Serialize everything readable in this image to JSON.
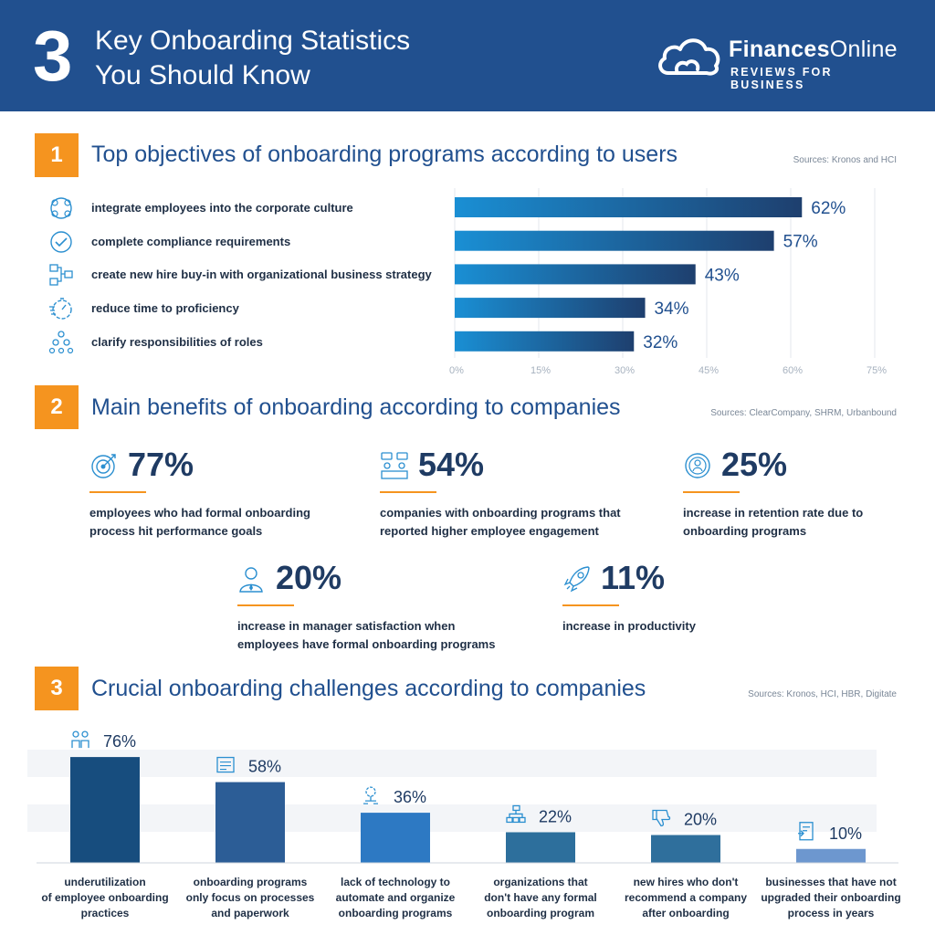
{
  "header": {
    "number": "3",
    "title_line1": "Key Onboarding Statistics",
    "title_line2": "You Should Know",
    "brand_bold": "Finances",
    "brand_rest": "Online",
    "brand_tagline": "REVIEWS FOR BUSINESS"
  },
  "section1": {
    "number": "1",
    "title": "Top objectives of onboarding programs according to users",
    "source": "Sources: Kronos and HCI"
  },
  "section2": {
    "number": "2",
    "title": "Main benefits of onboarding according to companies",
    "source": "Sources: ClearCompany, SHRM, Urbanbound",
    "stats": [
      {
        "value": "77%",
        "line1": "employees who had formal onboarding",
        "line2": "process hit performance goals",
        "icon": "target-icon"
      },
      {
        "value": "54%",
        "line1": "companies with onboarding programs that",
        "line2": "reported higher employee engagement",
        "icon": "team-chat-icon"
      },
      {
        "value": "25%",
        "line1": "increase in retention rate due to",
        "line2": "onboarding programs",
        "icon": "employee-badge-icon"
      },
      {
        "value": "20%",
        "line1": "increase in manager satisfaction when",
        "line2": "employees have formal onboarding programs",
        "icon": "manager-icon"
      },
      {
        "value": "11%",
        "line1": "increase in productivity",
        "line2": "",
        "icon": "rocket-icon"
      }
    ]
  },
  "section3": {
    "number": "3",
    "title": "Crucial onboarding challenges according to companies",
    "source": "Sources: Kronos, HCI, HBR, Digitate"
  },
  "chart_data": [
    {
      "type": "bar",
      "orientation": "horizontal",
      "categories": [
        "integrate employees into the corporate culture",
        "complete compliance requirements",
        "create new hire buy-in with organizational business strategy",
        "reduce time to proficiency",
        "clarify responsibilities of roles"
      ],
      "icons": [
        "culture-icon",
        "checkmark-icon",
        "strategy-icon",
        "stopwatch-icon",
        "hierarchy-icon"
      ],
      "values": [
        62,
        57,
        43,
        34,
        32
      ],
      "value_labels": [
        "62%",
        "57%",
        "43%",
        "34%",
        "32%"
      ],
      "xlim": [
        0,
        75
      ],
      "xticks": [
        "0%",
        "15%",
        "30%",
        "45%",
        "60%",
        "75%"
      ],
      "grid": true,
      "colors": {
        "bar_start": "#1a8fd4",
        "bar_end": "#1e3f6e",
        "label": "#21508f"
      }
    },
    {
      "type": "bar",
      "orientation": "vertical",
      "categories": [
        "underutilization of employee onboarding practices",
        "onboarding programs only focus on processes and paperwork",
        "lack of technology to automate and organize onboarding programs",
        "organizations that don't have any formal onboarding program",
        "new hires who don't recommend a company after onboarding",
        "businesses that have not upgraded their onboarding process in years"
      ],
      "label_lines": [
        [
          "underutilization",
          "of employee onboarding",
          "practices"
        ],
        [
          "onboarding programs",
          "only focus on processes",
          "and paperwork"
        ],
        [
          "lack of technology to",
          "automate and organize",
          "onboarding programs"
        ],
        [
          "organizations that",
          "don't have any formal",
          "onboarding program"
        ],
        [
          "new hires who don't",
          "recommend a company",
          "after onboarding"
        ],
        [
          "businesses that have not",
          "upgraded their onboarding",
          "process in years"
        ]
      ],
      "icons": [
        "people-icon",
        "paperwork-icon",
        "automation-icon",
        "org-chart-icon",
        "thumbs-down-icon",
        "document-upgrade-icon"
      ],
      "values": [
        76,
        58,
        36,
        22,
        20,
        10
      ],
      "value_labels": [
        "76%",
        "58%",
        "36%",
        "22%",
        "20%",
        "10%"
      ],
      "ylim": [
        0,
        80
      ],
      "colors": [
        "#174d7e",
        "#2c5d96",
        "#2d79c3",
        "#2d6f9c",
        "#2f6f9c",
        "#6d97cf"
      ]
    }
  ]
}
